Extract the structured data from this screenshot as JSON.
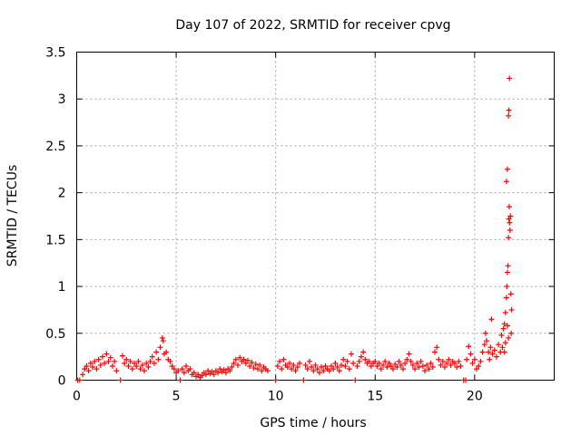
{
  "chart_data": {
    "type": "scatter",
    "title": "Day 107 of 2022, SRMTID for receiver cpvg",
    "xlabel": "GPS time / hours",
    "ylabel": "SRMTID / TECUs",
    "xlim": [
      0,
      24
    ],
    "ylim": [
      0,
      3.5
    ],
    "xticks": [
      0,
      5,
      10,
      15,
      20
    ],
    "yticks": [
      0,
      0.5,
      1,
      1.5,
      2,
      2.5,
      3,
      3.5
    ],
    "xtick_labels": [
      "0",
      "5",
      "10",
      "15",
      "20"
    ],
    "ytick_labels": [
      "0",
      "0.5",
      "1",
      "1.5",
      "2",
      "2.5",
      "3",
      "3.5"
    ],
    "grid": true,
    "marker": "+",
    "color": "#ff0000",
    "series": [
      {
        "name": "SRMTID",
        "points": [
          [
            0.05,
            0.0
          ],
          [
            0.15,
            0.0
          ],
          [
            0.3,
            0.06
          ],
          [
            0.4,
            0.12
          ],
          [
            0.5,
            0.15
          ],
          [
            0.6,
            0.1
          ],
          [
            0.7,
            0.18
          ],
          [
            0.8,
            0.14
          ],
          [
            0.9,
            0.2
          ],
          [
            1.0,
            0.12
          ],
          [
            1.1,
            0.22
          ],
          [
            1.2,
            0.16
          ],
          [
            1.3,
            0.25
          ],
          [
            1.4,
            0.18
          ],
          [
            1.5,
            0.28
          ],
          [
            1.6,
            0.2
          ],
          [
            1.7,
            0.24
          ],
          [
            1.8,
            0.15
          ],
          [
            1.9,
            0.2
          ],
          [
            2.0,
            0.1
          ],
          [
            2.2,
            0.0
          ],
          [
            2.3,
            0.26
          ],
          [
            2.4,
            0.18
          ],
          [
            2.5,
            0.22
          ],
          [
            2.6,
            0.15
          ],
          [
            2.7,
            0.2
          ],
          [
            2.8,
            0.12
          ],
          [
            2.9,
            0.18
          ],
          [
            3.0,
            0.15
          ],
          [
            3.1,
            0.2
          ],
          [
            3.2,
            0.12
          ],
          [
            3.3,
            0.16
          ],
          [
            3.4,
            0.1
          ],
          [
            3.5,
            0.18
          ],
          [
            3.6,
            0.14
          ],
          [
            3.7,
            0.2
          ],
          [
            3.8,
            0.25
          ],
          [
            3.9,
            0.18
          ],
          [
            4.0,
            0.3
          ],
          [
            4.1,
            0.22
          ],
          [
            4.2,
            0.35
          ],
          [
            4.3,
            0.45
          ],
          [
            4.35,
            0.42
          ],
          [
            4.4,
            0.28
          ],
          [
            4.5,
            0.3
          ],
          [
            4.6,
            0.22
          ],
          [
            4.7,
            0.2
          ],
          [
            4.8,
            0.15
          ],
          [
            4.9,
            0.12
          ],
          [
            5.0,
            0.08
          ],
          [
            5.1,
            0.1
          ],
          [
            5.2,
            0.0
          ],
          [
            5.3,
            0.12
          ],
          [
            5.4,
            0.08
          ],
          [
            5.5,
            0.15
          ],
          [
            5.6,
            0.1
          ],
          [
            5.7,
            0.12
          ],
          [
            5.8,
            0.06
          ],
          [
            5.9,
            0.08
          ],
          [
            6.0,
            0.04
          ],
          [
            6.1,
            0.06
          ],
          [
            6.2,
            0.03
          ],
          [
            6.3,
            0.05
          ],
          [
            6.4,
            0.08
          ],
          [
            6.5,
            0.06
          ],
          [
            6.6,
            0.1
          ],
          [
            6.7,
            0.07
          ],
          [
            6.8,
            0.09
          ],
          [
            6.9,
            0.06
          ],
          [
            7.0,
            0.1
          ],
          [
            7.1,
            0.08
          ],
          [
            7.2,
            0.12
          ],
          [
            7.3,
            0.09
          ],
          [
            7.4,
            0.11
          ],
          [
            7.5,
            0.08
          ],
          [
            7.6,
            0.12
          ],
          [
            7.7,
            0.1
          ],
          [
            7.8,
            0.14
          ],
          [
            7.9,
            0.18
          ],
          [
            8.0,
            0.22
          ],
          [
            8.1,
            0.16
          ],
          [
            8.2,
            0.24
          ],
          [
            8.3,
            0.2
          ],
          [
            8.4,
            0.22
          ],
          [
            8.5,
            0.18
          ],
          [
            8.6,
            0.21
          ],
          [
            8.7,
            0.15
          ],
          [
            8.8,
            0.19
          ],
          [
            8.9,
            0.13
          ],
          [
            9.0,
            0.17
          ],
          [
            9.1,
            0.12
          ],
          [
            9.2,
            0.16
          ],
          [
            9.3,
            0.1
          ],
          [
            9.4,
            0.14
          ],
          [
            9.5,
            0.12
          ],
          [
            9.6,
            0.1
          ],
          [
            10.0,
            0.0
          ],
          [
            10.1,
            0.15
          ],
          [
            10.2,
            0.2
          ],
          [
            10.3,
            0.12
          ],
          [
            10.4,
            0.22
          ],
          [
            10.5,
            0.16
          ],
          [
            10.6,
            0.14
          ],
          [
            10.7,
            0.18
          ],
          [
            10.8,
            0.12
          ],
          [
            10.9,
            0.16
          ],
          [
            11.0,
            0.1
          ],
          [
            11.1,
            0.14
          ],
          [
            11.2,
            0.18
          ],
          [
            11.4,
            0.0
          ],
          [
            11.5,
            0.16
          ],
          [
            11.6,
            0.12
          ],
          [
            11.7,
            0.2
          ],
          [
            11.8,
            0.14
          ],
          [
            11.9,
            0.1
          ],
          [
            12.0,
            0.16
          ],
          [
            12.1,
            0.12
          ],
          [
            12.2,
            0.08
          ],
          [
            12.3,
            0.14
          ],
          [
            12.4,
            0.1
          ],
          [
            12.5,
            0.15
          ],
          [
            12.6,
            0.12
          ],
          [
            12.7,
            0.1
          ],
          [
            12.8,
            0.15
          ],
          [
            12.9,
            0.12
          ],
          [
            13.0,
            0.18
          ],
          [
            13.1,
            0.14
          ],
          [
            13.2,
            0.1
          ],
          [
            13.3,
            0.16
          ],
          [
            13.4,
            0.22
          ],
          [
            13.5,
            0.15
          ],
          [
            13.6,
            0.2
          ],
          [
            13.7,
            0.12
          ],
          [
            13.8,
            0.28
          ],
          [
            13.9,
            0.18
          ],
          [
            14.0,
            0.0
          ],
          [
            14.1,
            0.15
          ],
          [
            14.2,
            0.2
          ],
          [
            14.3,
            0.25
          ],
          [
            14.4,
            0.3
          ],
          [
            14.5,
            0.22
          ],
          [
            14.6,
            0.18
          ],
          [
            14.7,
            0.2
          ],
          [
            14.8,
            0.15
          ],
          [
            14.9,
            0.18
          ],
          [
            15.0,
            0.2
          ],
          [
            15.1,
            0.15
          ],
          [
            15.2,
            0.18
          ],
          [
            15.3,
            0.12
          ],
          [
            15.4,
            0.16
          ],
          [
            15.5,
            0.2
          ],
          [
            15.6,
            0.14
          ],
          [
            15.7,
            0.18
          ],
          [
            15.8,
            0.15
          ],
          [
            15.9,
            0.12
          ],
          [
            16.0,
            0.17
          ],
          [
            16.1,
            0.14
          ],
          [
            16.2,
            0.2
          ],
          [
            16.3,
            0.16
          ],
          [
            16.4,
            0.12
          ],
          [
            16.5,
            0.18
          ],
          [
            16.6,
            0.22
          ],
          [
            16.7,
            0.28
          ],
          [
            16.8,
            0.2
          ],
          [
            16.9,
            0.16
          ],
          [
            17.0,
            0.12
          ],
          [
            17.1,
            0.18
          ],
          [
            17.2,
            0.14
          ],
          [
            17.3,
            0.2
          ],
          [
            17.4,
            0.15
          ],
          [
            17.5,
            0.1
          ],
          [
            17.6,
            0.16
          ],
          [
            17.7,
            0.12
          ],
          [
            17.8,
            0.18
          ],
          [
            17.9,
            0.14
          ],
          [
            18.0,
            0.3
          ],
          [
            18.1,
            0.35
          ],
          [
            18.2,
            0.22
          ],
          [
            18.3,
            0.16
          ],
          [
            18.4,
            0.2
          ],
          [
            18.5,
            0.14
          ],
          [
            18.6,
            0.18
          ],
          [
            18.7,
            0.22
          ],
          [
            18.8,
            0.16
          ],
          [
            18.9,
            0.2
          ],
          [
            19.0,
            0.18
          ],
          [
            19.1,
            0.14
          ],
          [
            19.2,
            0.2
          ],
          [
            19.3,
            0.15
          ],
          [
            19.45,
            0.0
          ],
          [
            19.55,
            0.0
          ],
          [
            19.6,
            0.22
          ],
          [
            19.7,
            0.36
          ],
          [
            19.8,
            0.28
          ],
          [
            19.9,
            0.18
          ],
          [
            20.0,
            0.22
          ],
          [
            20.1,
            0.12
          ],
          [
            20.2,
            0.15
          ],
          [
            20.3,
            0.2
          ],
          [
            20.4,
            0.3
          ],
          [
            20.5,
            0.38
          ],
          [
            20.55,
            0.5
          ],
          [
            20.6,
            0.42
          ],
          [
            20.7,
            0.3
          ],
          [
            20.75,
            0.22
          ],
          [
            20.8,
            0.35
          ],
          [
            20.85,
            0.65
          ],
          [
            20.9,
            0.28
          ],
          [
            21.0,
            0.32
          ],
          [
            21.1,
            0.25
          ],
          [
            21.2,
            0.38
          ],
          [
            21.3,
            0.3
          ],
          [
            21.35,
            0.48
          ],
          [
            21.4,
            0.35
          ],
          [
            21.45,
            0.55
          ],
          [
            21.5,
            0.6
          ],
          [
            21.55,
            0.72
          ],
          [
            21.6,
            0.88
          ],
          [
            21.62,
            1.0
          ],
          [
            21.65,
            1.15
          ],
          [
            21.68,
            1.22
          ],
          [
            21.7,
            1.52
          ],
          [
            21.72,
            1.72
          ],
          [
            21.74,
            1.85
          ],
          [
            21.76,
            1.68
          ],
          [
            21.78,
            1.6
          ],
          [
            21.6,
            2.12
          ],
          [
            21.65,
            2.25
          ],
          [
            21.7,
            2.82
          ],
          [
            21.72,
            2.88
          ],
          [
            21.75,
            3.22
          ],
          [
            21.8,
            1.75
          ],
          [
            21.82,
            0.92
          ],
          [
            21.84,
            0.5
          ],
          [
            21.86,
            0.75
          ],
          [
            21.7,
            0.45
          ],
          [
            21.65,
            0.58
          ],
          [
            21.55,
            0.4
          ],
          [
            21.5,
            0.3
          ]
        ]
      }
    ]
  }
}
